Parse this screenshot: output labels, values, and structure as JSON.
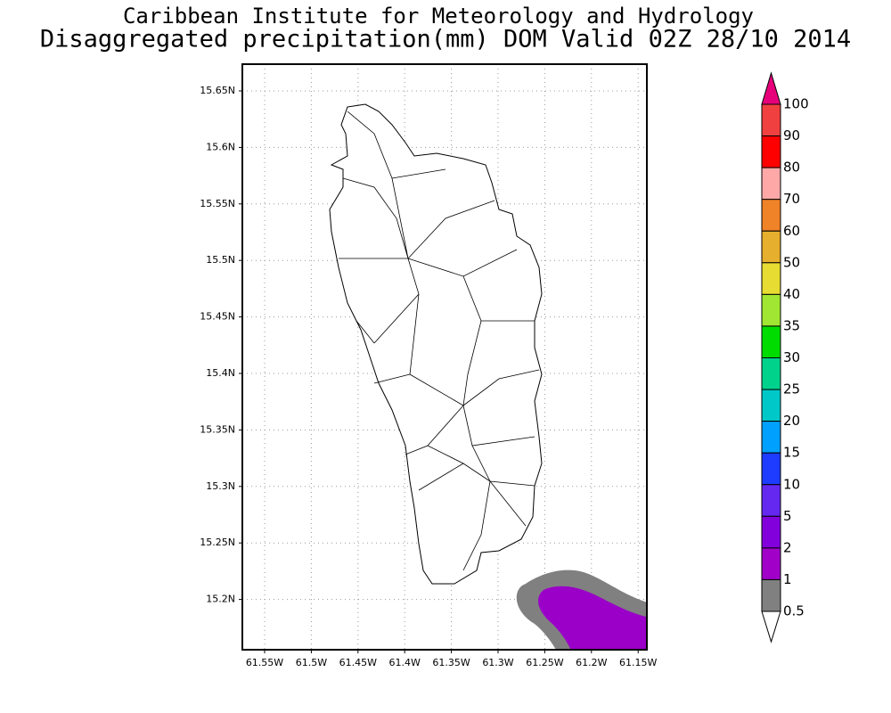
{
  "header": {
    "title": "Caribbean Institute for Meteorology and Hydrology",
    "subtitle": "Disaggregated precipitation(mm) DOM Valid 02Z 28/10 2014"
  },
  "map": {
    "lat_ticks": [
      "15.65N",
      "15.6N",
      "15.55N",
      "15.5N",
      "15.45N",
      "15.4N",
      "15.35N",
      "15.3N",
      "15.25N",
      "15.2N"
    ],
    "lon_ticks": [
      "61.55W",
      "61.5W",
      "61.45W",
      "61.4W",
      "61.35W",
      "61.3W",
      "61.25W",
      "61.2W",
      "61.15W"
    ]
  },
  "colorbar": {
    "labels": [
      100,
      90,
      80,
      70,
      60,
      50,
      40,
      35,
      30,
      25,
      20,
      15,
      10,
      5,
      2,
      1,
      0.5
    ],
    "colors": [
      "#e6007a",
      "#f04040",
      "#ff0000",
      "#ffa8a8",
      "#f08228",
      "#e6af2d",
      "#e6dc32",
      "#a0e632",
      "#00dc00",
      "#00d28c",
      "#00c8c8",
      "#00a0ff",
      "#1e3cff",
      "#6428f0",
      "#8200dc",
      "#a000c8",
      "#808080",
      "#ffffff"
    ]
  }
}
